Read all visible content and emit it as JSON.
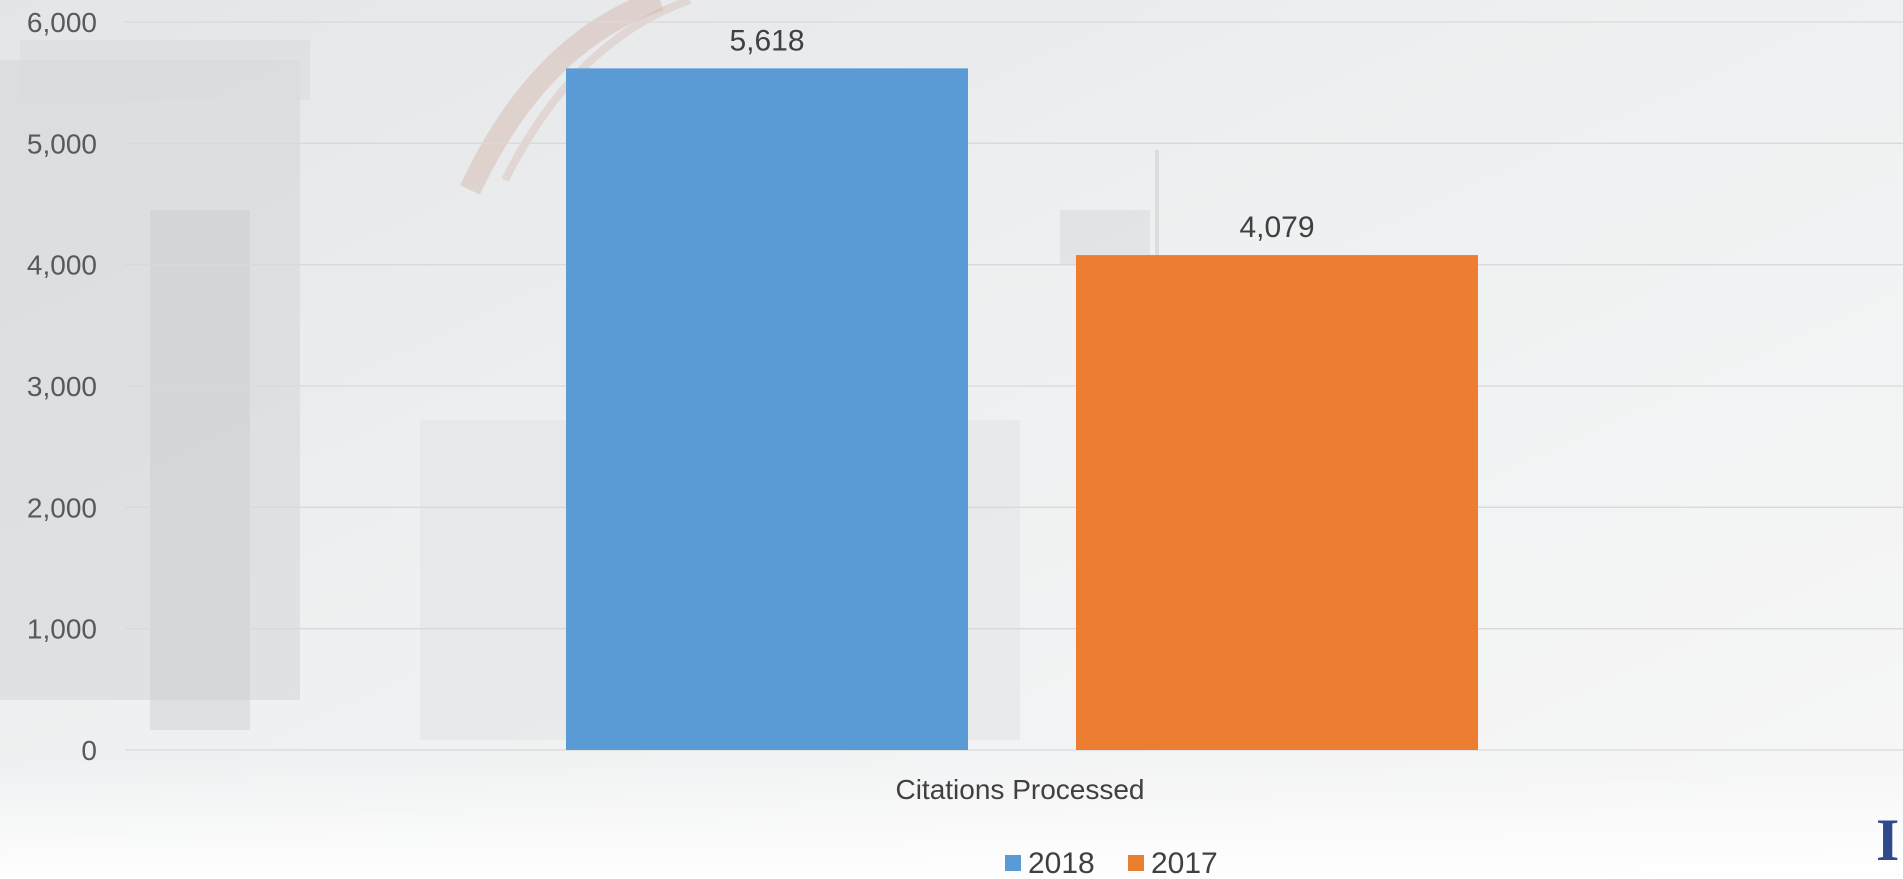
{
  "chart_data": {
    "type": "bar",
    "categories": [
      "Citations Processed"
    ],
    "series": [
      {
        "name": "2018",
        "values": [
          5618
        ],
        "color": "#5b9bd5"
      },
      {
        "name": "2017",
        "values": [
          4079
        ],
        "color": "#ed7d31"
      }
    ],
    "data_labels": [
      "5,618",
      "4,079"
    ],
    "yticks": [
      "0",
      "1,000",
      "2,000",
      "3,000",
      "4,000",
      "5,000",
      "6,000"
    ],
    "ylim": [
      0,
      6000
    ],
    "xlabel": "",
    "ylabel": "",
    "title": "",
    "grid": true,
    "legend": "bottom-center"
  },
  "colors": {
    "gridline": "#d9d9d9",
    "text": "#404040",
    "tick_text": "#595959"
  }
}
